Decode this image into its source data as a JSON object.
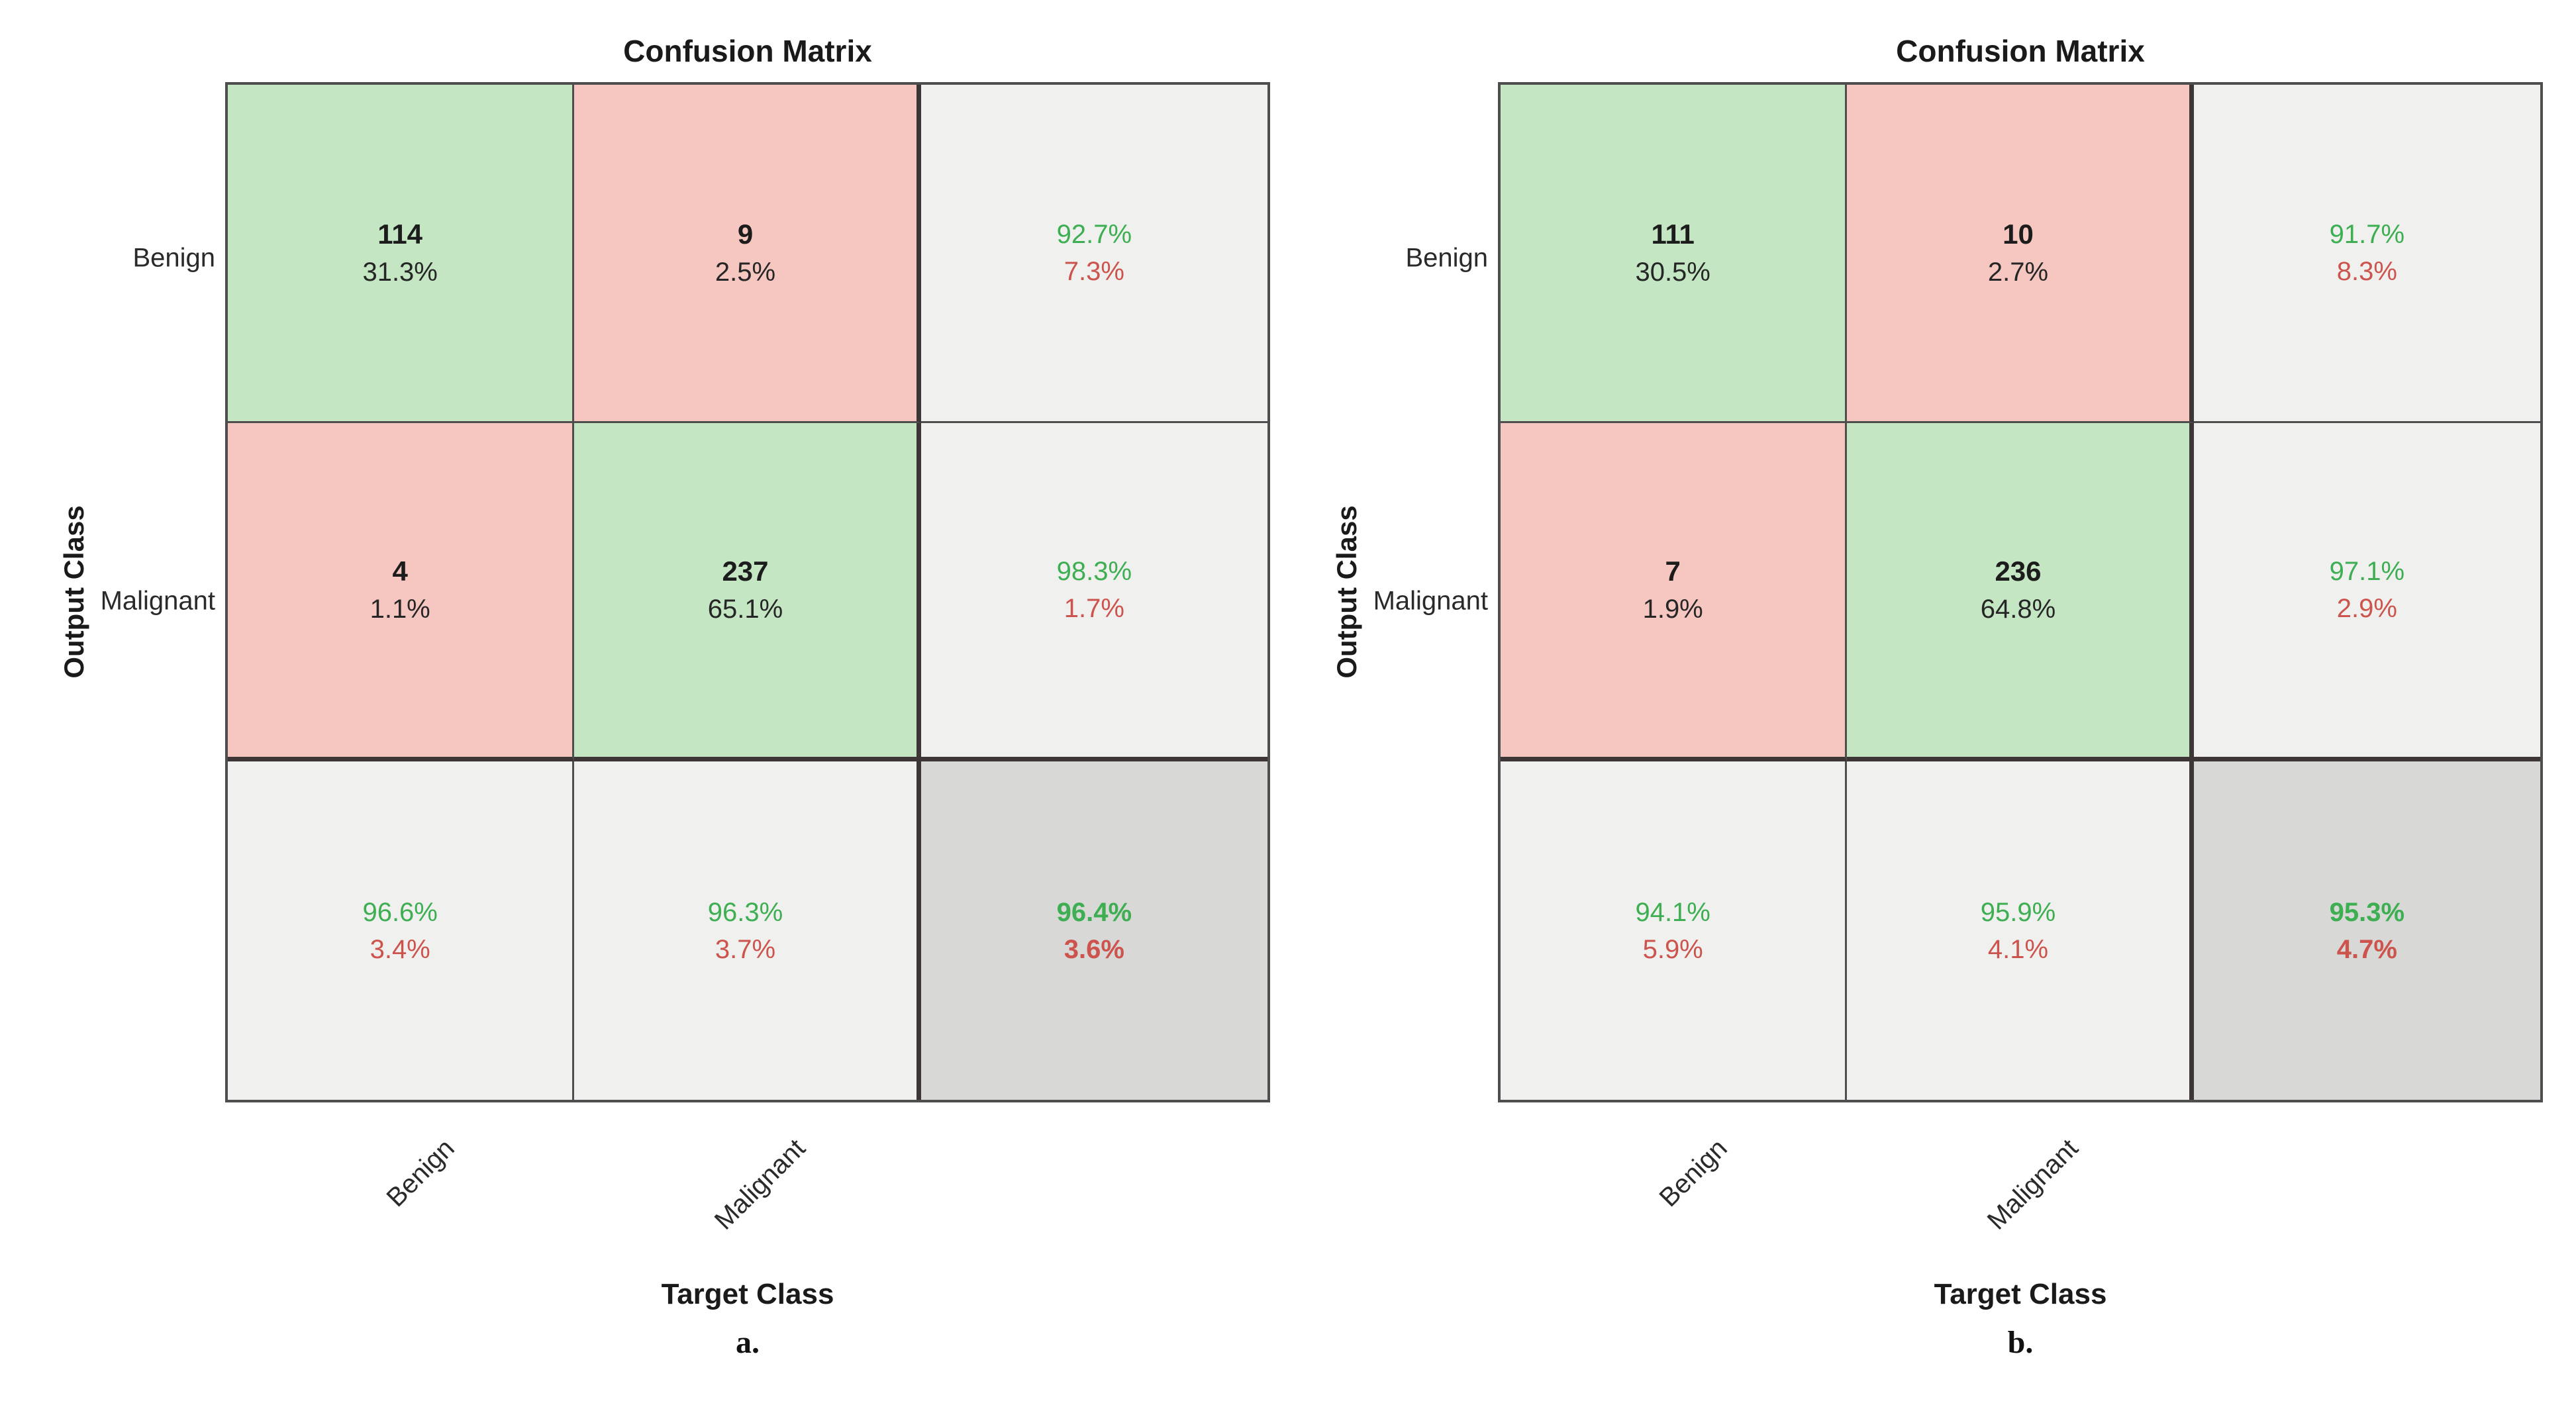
{
  "colors": {
    "correct_cell_fill": "#c4e6c3",
    "incorrect_cell_fill": "#f6c7c1",
    "summary_cell_fill": "#f0f0ef",
    "total_cell_fill": "#d8d8d7",
    "correct_text": "#3dae51",
    "incorrect_text": "#cc544d",
    "grid_line": "#4e4e4e",
    "grid_line_heavy": "#3e3636",
    "text": "#1f1f1f"
  },
  "chart_data": [
    {
      "type": "heatmap",
      "title": "Confusion Matrix",
      "xlabel": "Target Class",
      "ylabel": "Output Class",
      "caption": "a.",
      "classes": [
        "Benign",
        "Malignant"
      ],
      "counts": [
        [
          114,
          9
        ],
        [
          4,
          237
        ]
      ],
      "percent_of_total": [
        [
          31.3,
          2.5
        ],
        [
          1.1,
          65.1
        ]
      ],
      "output_class_summary": [
        {
          "correct_pct": 92.7,
          "incorrect_pct": 7.3
        },
        {
          "correct_pct": 98.3,
          "incorrect_pct": 1.7
        }
      ],
      "target_class_summary": [
        {
          "correct_pct": 96.6,
          "incorrect_pct": 3.4
        },
        {
          "correct_pct": 96.3,
          "incorrect_pct": 3.7
        }
      ],
      "overall": {
        "correct_pct": 96.4,
        "incorrect_pct": 3.6
      },
      "legend_position": "none",
      "grid": true
    },
    {
      "type": "heatmap",
      "title": "Confusion Matrix",
      "xlabel": "Target Class",
      "ylabel": "Output Class",
      "caption": "b.",
      "classes": [
        "Benign",
        "Malignant"
      ],
      "counts": [
        [
          111,
          10
        ],
        [
          7,
          236
        ]
      ],
      "percent_of_total": [
        [
          30.5,
          2.7
        ],
        [
          1.9,
          64.8
        ]
      ],
      "output_class_summary": [
        {
          "correct_pct": 91.7,
          "incorrect_pct": 8.3
        },
        {
          "correct_pct": 97.1,
          "incorrect_pct": 2.9
        }
      ],
      "target_class_summary": [
        {
          "correct_pct": 94.1,
          "incorrect_pct": 5.9
        },
        {
          "correct_pct": 95.9,
          "incorrect_pct": 4.1
        }
      ],
      "overall": {
        "correct_pct": 95.3,
        "incorrect_pct": 4.7
      },
      "legend_position": "none",
      "grid": true
    }
  ],
  "charts": [
    {
      "title": "Confusion Matrix",
      "y_axis_label": "Output Class",
      "x_axis_label": "Target Class",
      "caption": "a.",
      "row_labels": [
        "Benign",
        "Malignant"
      ],
      "col_labels": [
        "Benign",
        "Malignant"
      ],
      "cells": [
        [
          {
            "line1": "114",
            "line2": "31.3%"
          },
          {
            "line1": "9",
            "line2": "2.5%"
          },
          {
            "line1": "92.7%",
            "line2": "7.3%"
          }
        ],
        [
          {
            "line1": "4",
            "line2": "1.1%"
          },
          {
            "line1": "237",
            "line2": "65.1%"
          },
          {
            "line1": "98.3%",
            "line2": "1.7%"
          }
        ],
        [
          {
            "line1": "96.6%",
            "line2": "3.4%"
          },
          {
            "line1": "96.3%",
            "line2": "3.7%"
          },
          {
            "line1": "96.4%",
            "line2": "3.6%"
          }
        ]
      ]
    },
    {
      "title": "Confusion Matrix",
      "y_axis_label": "Output Class",
      "x_axis_label": "Target Class",
      "caption": "b.",
      "row_labels": [
        "Benign",
        "Malignant"
      ],
      "col_labels": [
        "Benign",
        "Malignant"
      ],
      "cells": [
        [
          {
            "line1": "111",
            "line2": "30.5%"
          },
          {
            "line1": "10",
            "line2": "2.7%"
          },
          {
            "line1": "91.7%",
            "line2": "8.3%"
          }
        ],
        [
          {
            "line1": "7",
            "line2": "1.9%"
          },
          {
            "line1": "236",
            "line2": "64.8%"
          },
          {
            "line1": "97.1%",
            "line2": "2.9%"
          }
        ],
        [
          {
            "line1": "94.1%",
            "line2": "5.9%"
          },
          {
            "line1": "95.9%",
            "line2": "4.1%"
          },
          {
            "line1": "95.3%",
            "line2": "4.7%"
          }
        ]
      ]
    }
  ]
}
